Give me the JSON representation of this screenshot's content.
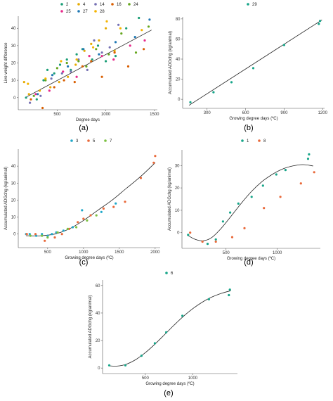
{
  "chart_data": [
    {
      "id": "a",
      "panel_label": "(a)",
      "type": "scatter",
      "xlabel": "Degree days",
      "ylabel": "Live weight difference",
      "xlim": [
        100,
        1530
      ],
      "ylim": [
        -7,
        47
      ],
      "xticks": [
        500,
        1000,
        1500
      ],
      "yticks": [
        0,
        10,
        20,
        30,
        40
      ],
      "legend_position": "top",
      "legend_columns": 5,
      "grid": false,
      "fit": {
        "type": "linear",
        "points": [
          [
            170,
            0
          ],
          [
            1470,
            39
          ]
        ]
      },
      "series": [
        {
          "name": "2",
          "color": "#1b9e77",
          "points": [
            [
              180,
              0
            ],
            [
              290,
              -1
            ],
            [
              360,
              10
            ],
            [
              400,
              16
            ],
            [
              470,
              14
            ],
            [
              530,
              19
            ],
            [
              600,
              22
            ],
            [
              640,
              16
            ],
            [
              700,
              25
            ],
            [
              760,
              28
            ],
            [
              860,
              22
            ],
            [
              920,
              30
            ],
            [
              1000,
              21
            ],
            [
              1100,
              24
            ],
            [
              1210,
              40
            ],
            [
              1340,
              46
            ]
          ]
        },
        {
          "name": "4",
          "color": "#e6ab02",
          "points": [
            [
              160,
              9
            ],
            [
              210,
              2
            ],
            [
              320,
              4
            ],
            [
              430,
              6
            ],
            [
              520,
              9
            ],
            [
              610,
              12
            ],
            [
              690,
              19
            ],
            [
              780,
              27
            ],
            [
              850,
              31
            ],
            [
              930,
              33
            ],
            [
              1000,
              40
            ],
            [
              1090,
              27
            ]
          ]
        },
        {
          "name": "14",
          "color": "#7570b3",
          "points": [
            [
              220,
              -3
            ],
            [
              330,
              1
            ],
            [
              440,
              11
            ],
            [
              550,
              14
            ],
            [
              640,
              15
            ],
            [
              720,
              22
            ],
            [
              810,
              16
            ],
            [
              880,
              33
            ],
            [
              960,
              26
            ],
            [
              1040,
              29
            ],
            [
              1130,
              42
            ]
          ]
        },
        {
          "name": "16",
          "color": "#d95f02",
          "points": [
            [
              230,
              -1
            ],
            [
              350,
              -6
            ],
            [
              470,
              6
            ],
            [
              570,
              10
            ],
            [
              680,
              9
            ],
            [
              760,
              18
            ],
            [
              850,
              21
            ],
            [
              960,
              12
            ],
            [
              1090,
              26
            ],
            [
              1230,
              18
            ],
            [
              1390,
              28
            ]
          ]
        },
        {
          "name": "24",
          "color": "#66a61e",
          "points": [
            [
              260,
              1
            ],
            [
              380,
              10
            ],
            [
              500,
              17
            ],
            [
              600,
              20
            ],
            [
              720,
              21
            ],
            [
              800,
              18
            ],
            [
              900,
              28
            ],
            [
              1030,
              25
            ],
            [
              1160,
              37
            ],
            [
              1310,
              26
            ],
            [
              1440,
              41
            ]
          ]
        },
        {
          "name": "25",
          "color": "#e7298a",
          "points": [
            [
              280,
              2
            ],
            [
              420,
              4
            ],
            [
              560,
              15
            ],
            [
              700,
              12
            ],
            [
              830,
              24
            ],
            [
              960,
              24
            ],
            [
              1080,
              22
            ],
            [
              1250,
              30
            ],
            [
              1400,
              33
            ]
          ]
        },
        {
          "name": "27",
          "color": "#1f78b4",
          "points": [
            [
              300,
              2
            ],
            [
              450,
              13
            ],
            [
              610,
              18
            ],
            [
              770,
              28
            ],
            [
              930,
              25
            ],
            [
              1100,
              32
            ],
            [
              1300,
              35
            ],
            [
              1450,
              45
            ]
          ]
        },
        {
          "name": "28",
          "color": "#f5b400",
          "points": [
            [
              200,
              8
            ],
            [
              380,
              11
            ],
            [
              540,
              21
            ],
            [
              700,
              22
            ],
            [
              870,
              29
            ],
            [
              1010,
              44
            ],
            [
              1150,
              40
            ],
            [
              1370,
              39
            ]
          ]
        }
      ]
    },
    {
      "id": "b",
      "panel_label": "(b)",
      "type": "scatter",
      "xlabel": "Growing degree days (ºC)",
      "ylabel": "Accumulated ADGchg (kg/animal)",
      "xlim": [
        110,
        1215
      ],
      "ylim": [
        -9,
        82
      ],
      "xticks": [
        300,
        600,
        900,
        1200
      ],
      "yticks": [
        0,
        20,
        40,
        60,
        80
      ],
      "legend_position": "top",
      "grid": false,
      "fit": {
        "type": "linear",
        "points": [
          [
            160,
            -6
          ],
          [
            1195,
            79
          ]
        ]
      },
      "series": [
        {
          "name": "29",
          "color": "#17a589",
          "points": [
            [
              170,
              -3
            ],
            [
              350,
              7
            ],
            [
              490,
              17
            ],
            [
              660,
              31
            ],
            [
              900,
              54
            ],
            [
              1170,
              75
            ],
            [
              1180,
              78
            ]
          ]
        }
      ]
    },
    {
      "id": "c",
      "panel_label": "(c)",
      "type": "scatter",
      "xlabel": "Growing degree days (ºC)",
      "ylabel": "Accumulated ADGchg (kg/animal)",
      "xlim": [
        90,
        2070
      ],
      "ylim": [
        -8,
        50
      ],
      "xticks": [
        500,
        1000,
        1500,
        2000
      ],
      "yticks": [
        0,
        10,
        20,
        30,
        40
      ],
      "legend_position": "top",
      "grid": false,
      "fit": {
        "type": "curve",
        "points": [
          [
            200,
            -1
          ],
          [
            400,
            -1
          ],
          [
            600,
            0
          ],
          [
            800,
            3
          ],
          [
            1000,
            8
          ],
          [
            1200,
            14
          ],
          [
            1400,
            20
          ],
          [
            1600,
            27
          ],
          [
            1800,
            34
          ],
          [
            2000,
            42
          ]
        ]
      },
      "series": [
        {
          "name": "3",
          "color": "#1fa8c9",
          "points": [
            [
              200,
              0
            ],
            [
              250,
              0
            ],
            [
              340,
              -1
            ],
            [
              420,
              0
            ],
            [
              500,
              -1
            ],
            [
              560,
              0
            ],
            [
              620,
              1
            ],
            [
              720,
              2
            ],
            [
              850,
              4
            ],
            [
              980,
              14
            ],
            [
              1250,
              13
            ],
            [
              1450,
              18
            ]
          ]
        },
        {
          "name": "5",
          "color": "#e9693a",
          "points": [
            [
              210,
              0
            ],
            [
              330,
              0
            ],
            [
              460,
              -4
            ],
            [
              600,
              -2
            ],
            [
              700,
              0
            ],
            [
              800,
              3
            ],
            [
              920,
              7
            ],
            [
              1000,
              9
            ],
            [
              1100,
              11
            ],
            [
              1280,
              15
            ],
            [
              1420,
              16
            ],
            [
              1580,
              19
            ],
            [
              1800,
              33
            ],
            [
              1980,
              42
            ],
            [
              2000,
              46
            ]
          ]
        },
        {
          "name": "7",
          "color": "#7cc142",
          "points": [
            [
              260,
              -1
            ],
            [
              420,
              -1
            ],
            [
              500,
              -2
            ],
            [
              640,
              1
            ],
            [
              780,
              3
            ],
            [
              900,
              4
            ],
            [
              1050,
              8
            ],
            [
              1180,
              11
            ]
          ]
        }
      ]
    },
    {
      "id": "d",
      "panel_label": "(d)",
      "type": "scatter",
      "xlabel": "Growing degree days (ºC)",
      "ylabel": "Accumulated ADGchg (kg/animal)",
      "xlim": [
        70,
        1420
      ],
      "ylim": [
        -7,
        37
      ],
      "xticks": [
        500,
        1000
      ],
      "yticks": [
        0,
        10,
        20,
        30
      ],
      "legend_position": "top",
      "grid": false,
      "fit": {
        "type": "curve",
        "points": [
          [
            120,
            -1
          ],
          [
            200,
            -3
          ],
          [
            280,
            -3.6
          ],
          [
            360,
            -2.2
          ],
          [
            450,
            1.8
          ],
          [
            550,
            7.4
          ],
          [
            650,
            13.2
          ],
          [
            750,
            18.5
          ],
          [
            850,
            22.8
          ],
          [
            950,
            26
          ],
          [
            1050,
            28.4
          ],
          [
            1150,
            29.8
          ],
          [
            1250,
            30.4
          ],
          [
            1350,
            29.8
          ]
        ]
      },
      "series": [
        {
          "name": "1",
          "color": "#17a589",
          "points": [
            [
              130,
              -1
            ],
            [
              320,
              -5
            ],
            [
              400,
              -3
            ],
            [
              470,
              5
            ],
            [
              540,
              9
            ],
            [
              620,
              13
            ],
            [
              750,
              16
            ],
            [
              860,
              21
            ],
            [
              990,
              26
            ],
            [
              1080,
              28
            ],
            [
              1300,
              33
            ],
            [
              1310,
              35
            ]
          ]
        },
        {
          "name": "8",
          "color": "#e9693a",
          "points": [
            [
              150,
              0
            ],
            [
              270,
              -4
            ],
            [
              400,
              -4
            ],
            [
              560,
              -2
            ],
            [
              680,
              2
            ],
            [
              870,
              11
            ],
            [
              1030,
              16
            ],
            [
              1230,
              22
            ],
            [
              1360,
              27
            ]
          ]
        }
      ]
    },
    {
      "id": "e",
      "panel_label": "(e)",
      "type": "scatter",
      "xlabel": "Growing degree days (ºC)",
      "ylabel": "Accumulated ADGchg (kg/animal)",
      "xlim": [
        50,
        1470
      ],
      "ylim": [
        -4,
        64
      ],
      "xticks": [
        500,
        1000
      ],
      "yticks": [
        0,
        20,
        40,
        60
      ],
      "legend_position": "top",
      "grid": false,
      "fit": {
        "type": "curve",
        "points": [
          [
            120,
            1.6
          ],
          [
            200,
            1.4
          ],
          [
            300,
            2.8
          ],
          [
            400,
            6.2
          ],
          [
            500,
            11.2
          ],
          [
            600,
            17.3
          ],
          [
            700,
            24.1
          ],
          [
            800,
            31
          ],
          [
            900,
            37.5
          ],
          [
            1000,
            43.2
          ],
          [
            1100,
            47.9
          ],
          [
            1200,
            51.6
          ],
          [
            1300,
            54.3
          ],
          [
            1400,
            56.2
          ]
        ]
      },
      "series": [
        {
          "name": "6",
          "color": "#17a589",
          "points": [
            [
              120,
              2
            ],
            [
              290,
              2
            ],
            [
              460,
              9
            ],
            [
              600,
              18
            ],
            [
              720,
              26
            ],
            [
              890,
              38
            ],
            [
              1170,
              50
            ],
            [
              1390,
              57
            ],
            [
              1380,
              53
            ]
          ]
        }
      ]
    }
  ]
}
